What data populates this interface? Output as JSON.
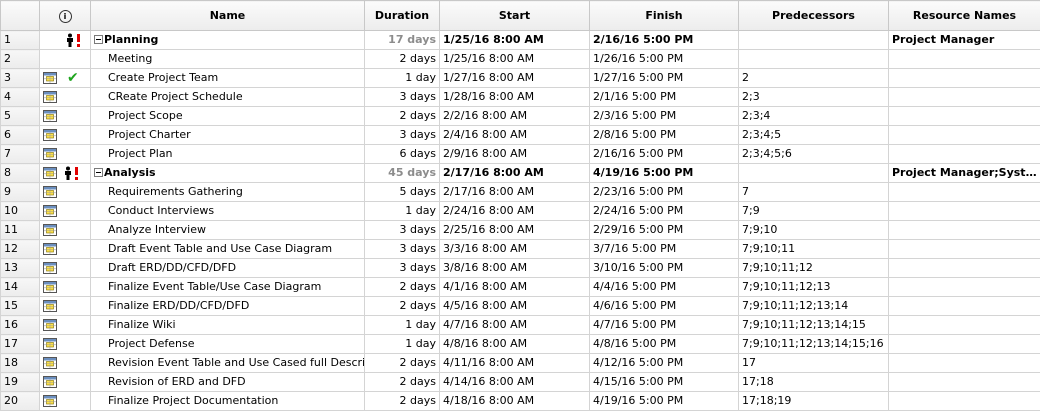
{
  "columns": {
    "indicator_icon": "info-icon",
    "name": "Name",
    "duration": "Duration",
    "start": "Start",
    "finish": "Finish",
    "predecessors": "Predecessors",
    "resources": "Resource Names"
  },
  "rows": [
    {
      "id": "1",
      "summary": true,
      "icons": [
        "resource-overallocated-icon"
      ],
      "name": "Planning",
      "duration": "17 days",
      "start": "1/25/16 8:00 AM",
      "finish": "2/16/16 5:00 PM",
      "predecessors": "",
      "resources": "Project Manager"
    },
    {
      "id": "2",
      "summary": false,
      "icons": [],
      "name": "Meeting",
      "duration": "2 days",
      "start": "1/25/16 8:00 AM",
      "finish": "1/26/16 5:00 PM",
      "predecessors": "",
      "resources": ""
    },
    {
      "id": "3",
      "summary": false,
      "icons": [
        "calendar-table-icon",
        "complete-check-icon"
      ],
      "name": "Create Project Team",
      "duration": "1 day",
      "start": "1/27/16 8:00 AM",
      "finish": "1/27/16 5:00 PM",
      "predecessors": "2",
      "resources": ""
    },
    {
      "id": "4",
      "summary": false,
      "icons": [
        "calendar-table-icon"
      ],
      "name": "CReate Project Schedule",
      "duration": "3 days",
      "start": "1/28/16 8:00 AM",
      "finish": "2/1/16 5:00 PM",
      "predecessors": "2;3",
      "resources": ""
    },
    {
      "id": "5",
      "summary": false,
      "icons": [
        "calendar-table-icon"
      ],
      "name": "Project Scope",
      "duration": "2 days",
      "start": "2/2/16 8:00 AM",
      "finish": "2/3/16 5:00 PM",
      "predecessors": "2;3;4",
      "resources": ""
    },
    {
      "id": "6",
      "summary": false,
      "icons": [
        "calendar-table-icon"
      ],
      "name": "Project Charter",
      "duration": "3 days",
      "start": "2/4/16 8:00 AM",
      "finish": "2/8/16 5:00 PM",
      "predecessors": "2;3;4;5",
      "resources": ""
    },
    {
      "id": "7",
      "summary": false,
      "icons": [
        "calendar-table-icon"
      ],
      "name": "Project Plan",
      "duration": "6 days",
      "start": "2/9/16 8:00 AM",
      "finish": "2/16/16 5:00 PM",
      "predecessors": "2;3;4;5;6",
      "resources": ""
    },
    {
      "id": "8",
      "summary": true,
      "icons": [
        "calendar-table-icon",
        "resource-overallocated-icon"
      ],
      "name": "Analysis",
      "duration": "45 days",
      "start": "2/17/16 8:00 AM",
      "finish": "4/19/16 5:00 PM",
      "predecessors": "",
      "resources": "Project Manager;Syste…"
    },
    {
      "id": "9",
      "summary": false,
      "icons": [
        "calendar-table-icon"
      ],
      "name": "Requirements Gathering",
      "duration": "5 days",
      "start": "2/17/16 8:00 AM",
      "finish": "2/23/16 5:00 PM",
      "predecessors": "7",
      "resources": ""
    },
    {
      "id": "10",
      "summary": false,
      "icons": [
        "calendar-table-icon"
      ],
      "name": "Conduct Interviews",
      "duration": "1 day",
      "start": "2/24/16 8:00 AM",
      "finish": "2/24/16 5:00 PM",
      "predecessors": "7;9",
      "resources": ""
    },
    {
      "id": "11",
      "summary": false,
      "icons": [
        "calendar-table-icon"
      ],
      "name": "Analyze Interview",
      "duration": "3 days",
      "start": "2/25/16 8:00 AM",
      "finish": "2/29/16 5:00 PM",
      "predecessors": "7;9;10",
      "resources": ""
    },
    {
      "id": "12",
      "summary": false,
      "icons": [
        "calendar-table-icon"
      ],
      "name": "Draft Event Table and Use Case Diagram",
      "duration": "3 days",
      "start": "3/3/16 8:00 AM",
      "finish": "3/7/16 5:00 PM",
      "predecessors": "7;9;10;11",
      "resources": ""
    },
    {
      "id": "13",
      "summary": false,
      "icons": [
        "calendar-table-icon"
      ],
      "name": "Draft ERD/DD/CFD/DFD",
      "duration": "3 days",
      "start": "3/8/16 8:00 AM",
      "finish": "3/10/16 5:00 PM",
      "predecessors": "7;9;10;11;12",
      "resources": ""
    },
    {
      "id": "14",
      "summary": false,
      "icons": [
        "calendar-table-icon"
      ],
      "name": "Finalize Event Table/Use Case Diagram",
      "duration": "2 days",
      "start": "4/1/16 8:00 AM",
      "finish": "4/4/16 5:00 PM",
      "predecessors": "7;9;10;11;12;13",
      "resources": ""
    },
    {
      "id": "15",
      "summary": false,
      "icons": [
        "calendar-table-icon"
      ],
      "name": "Finalize ERD/DD/CFD/DFD",
      "duration": "2 days",
      "start": "4/5/16 8:00 AM",
      "finish": "4/6/16 5:00 PM",
      "predecessors": "7;9;10;11;12;13;14",
      "resources": ""
    },
    {
      "id": "16",
      "summary": false,
      "icons": [
        "calendar-table-icon"
      ],
      "name": "Finalize Wiki",
      "duration": "1 day",
      "start": "4/7/16 8:00 AM",
      "finish": "4/7/16 5:00 PM",
      "predecessors": "7;9;10;11;12;13;14;15",
      "resources": ""
    },
    {
      "id": "17",
      "summary": false,
      "icons": [
        "calendar-table-icon"
      ],
      "name": "Project Defense",
      "duration": "1 day",
      "start": "4/8/16 8:00 AM",
      "finish": "4/8/16 5:00 PM",
      "predecessors": "7;9;10;11;12;13;14;15;16",
      "resources": ""
    },
    {
      "id": "18",
      "summary": false,
      "icons": [
        "calendar-table-icon"
      ],
      "name": "Revision Event Table and Use Cased full Description",
      "duration": "2 days",
      "start": "4/11/16 8:00 AM",
      "finish": "4/12/16 5:00 PM",
      "predecessors": "17",
      "resources": ""
    },
    {
      "id": "19",
      "summary": false,
      "icons": [
        "calendar-table-icon"
      ],
      "name": "Revision of ERD and DFD",
      "duration": "2 days",
      "start": "4/14/16 8:00 AM",
      "finish": "4/15/16 5:00 PM",
      "predecessors": "17;18",
      "resources": ""
    },
    {
      "id": "20",
      "summary": false,
      "icons": [
        "calendar-table-icon"
      ],
      "name": "Finalize Project Documentation",
      "duration": "2 days",
      "start": "4/18/16 8:00 AM",
      "finish": "4/19/16 5:00 PM",
      "predecessors": "17;18;19",
      "resources": ""
    }
  ]
}
